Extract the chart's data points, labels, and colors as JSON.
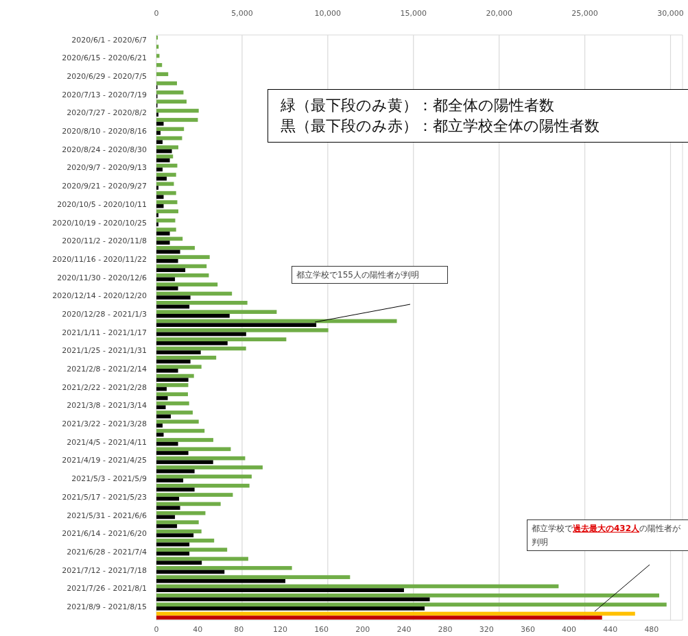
{
  "chart_data": {
    "type": "bar",
    "orientation": "horizontal",
    "categories": [
      "2020/6/1 - 2020/6/7",
      null,
      "2020/6/15 - 2020/6/21",
      null,
      "2020/6/29 - 2020/7/5",
      null,
      "2020/7/13 - 2020/7/19",
      null,
      "2020/7/27 - 2020/8/2",
      null,
      "2020/8/10 - 2020/8/16",
      null,
      "2020/8/24 - 2020/8/30",
      null,
      "2020/9/7 - 2020/9/13",
      null,
      "2020/9/21 - 2020/9/27",
      null,
      "2020/10/5 - 2020/10/11",
      null,
      "2020/10/19 - 2020/10/25",
      null,
      "2020/11/2 - 2020/11/8",
      null,
      "2020/11/16 - 2020/11/22",
      null,
      "2020/11/30 - 2020/12/6",
      null,
      "2020/12/14 - 2020/12/20",
      null,
      "2020/12/28 - 2021/1/3",
      null,
      "2021/1/11 - 2021/1/17",
      null,
      "2021/1/25 - 2021/1/31",
      null,
      "2021/2/8 - 2021/2/14",
      null,
      "2021/2/22 - 2021/2/28",
      null,
      "2021/3/8 - 2021/3/14",
      null,
      "2021/3/22 - 2021/3/28",
      null,
      "2021/4/5 - 2021/4/11",
      null,
      "2021/4/19 - 2021/4/25",
      null,
      "2021/5/3 - 2021/5/9",
      null,
      "2021/5/17 - 2021/5/23",
      null,
      "2021/5/31 - 2021/6/6",
      null,
      "2021/6/14 - 2021/6/20",
      null,
      "2021/6/28 - 2021/7/4",
      null,
      "2021/7/12 - 2021/7/18",
      null,
      "2021/7/26 - 2021/8/1",
      null,
      "2021/8/9 - 2021/8/15",
      null
    ],
    "series": [
      {
        "axis": "x2",
        "values": [
          80,
          130,
          180,
          330,
          690,
          1200,
          1580,
          1760,
          2470,
          2420,
          1610,
          1500,
          1280,
          970,
          1220,
          1150,
          1020,
          1150,
          1220,
          1280,
          1100,
          1150,
          1530,
          2240,
          3110,
          2930,
          3060,
          3570,
          4410,
          5310,
          7020,
          14030,
          10030,
          7580,
          5230,
          3490,
          2630,
          2190,
          1860,
          1840,
          1910,
          2120,
          2470,
          2810,
          3320,
          4340,
          5180,
          6200,
          5560,
          5430,
          4460,
          3750,
          2860,
          2470,
          2630,
          3370,
          4130,
          5360,
          7910,
          11300,
          23470,
          29340,
          29770,
          27930
        ],
        "colors": [
          "#70ad47",
          "#70ad47",
          "#70ad47",
          "#70ad47",
          "#70ad47",
          "#70ad47",
          "#70ad47",
          "#70ad47",
          "#70ad47",
          "#70ad47",
          "#70ad47",
          "#70ad47",
          "#70ad47",
          "#70ad47",
          "#70ad47",
          "#70ad47",
          "#70ad47",
          "#70ad47",
          "#70ad47",
          "#70ad47",
          "#70ad47",
          "#70ad47",
          "#70ad47",
          "#70ad47",
          "#70ad47",
          "#70ad47",
          "#70ad47",
          "#70ad47",
          "#70ad47",
          "#70ad47",
          "#70ad47",
          "#70ad47",
          "#70ad47",
          "#70ad47",
          "#70ad47",
          "#70ad47",
          "#70ad47",
          "#70ad47",
          "#70ad47",
          "#70ad47",
          "#70ad47",
          "#70ad47",
          "#70ad47",
          "#70ad47",
          "#70ad47",
          "#70ad47",
          "#70ad47",
          "#70ad47",
          "#70ad47",
          "#70ad47",
          "#70ad47",
          "#70ad47",
          "#70ad47",
          "#70ad47",
          "#70ad47",
          "#70ad47",
          "#70ad47",
          "#70ad47",
          "#70ad47",
          "#70ad47",
          "#70ad47",
          "#70ad47",
          "#70ad47",
          "#ffc000"
        ]
      },
      {
        "values": [
          0,
          0,
          0,
          0,
          0,
          1,
          1,
          1,
          2,
          7,
          4,
          6,
          15,
          13,
          6,
          10,
          2,
          7,
          7,
          2,
          2,
          13,
          13,
          23,
          21,
          28,
          18,
          21,
          33,
          32,
          71,
          155,
          87,
          69,
          43,
          33,
          21,
          31,
          10,
          11,
          9,
          14,
          6,
          7,
          21,
          31,
          55,
          37,
          26,
          37,
          22,
          23,
          18,
          20,
          36,
          32,
          32,
          44,
          66,
          125,
          240,
          265,
          260,
          432
        ],
        "colors": [
          "#000000",
          "#000000",
          "#000000",
          "#000000",
          "#000000",
          "#000000",
          "#000000",
          "#000000",
          "#000000",
          "#000000",
          "#000000",
          "#000000",
          "#000000",
          "#000000",
          "#000000",
          "#000000",
          "#000000",
          "#000000",
          "#000000",
          "#000000",
          "#000000",
          "#000000",
          "#000000",
          "#000000",
          "#000000",
          "#000000",
          "#000000",
          "#000000",
          "#000000",
          "#000000",
          "#000000",
          "#000000",
          "#000000",
          "#000000",
          "#000000",
          "#000000",
          "#000000",
          "#000000",
          "#000000",
          "#000000",
          "#000000",
          "#000000",
          "#000000",
          "#000000",
          "#000000",
          "#000000",
          "#000000",
          "#000000",
          "#000000",
          "#000000",
          "#000000",
          "#000000",
          "#000000",
          "#000000",
          "#000000",
          "#000000",
          "#000000",
          "#000000",
          "#000000",
          "#000000",
          "#000000",
          "#000000",
          "#000000",
          "#c00000"
        ]
      }
    ],
    "xlim": [
      0,
      510
    ],
    "xticks": [
      0,
      40,
      80,
      120,
      160,
      200,
      240,
      280,
      320,
      360,
      400,
      440,
      480
    ],
    "x2lim": [
      0,
      30700
    ],
    "x2ticks": [
      0,
      {
        "value": 5000,
        "label": "5,000"
      },
      {
        "value": 10000,
        "label": "10,000"
      },
      {
        "value": 15000,
        "label": "15,000"
      },
      {
        "value": 20000,
        "label": "20,000"
      },
      {
        "value": 25000,
        "label": "25,000"
      },
      {
        "value": 30000,
        "label": "30,000"
      }
    ],
    "grid": "x2",
    "annotations": [
      "緑（最下段のみ黄）：都全体の陽性者数",
      "黒（最下段のみ赤）：都立学校全体の陽性者数",
      "都立学校で155人の陽性者が判明",
      "都立学校で**過去最大の432人**の陽性者が判明"
    ]
  }
}
